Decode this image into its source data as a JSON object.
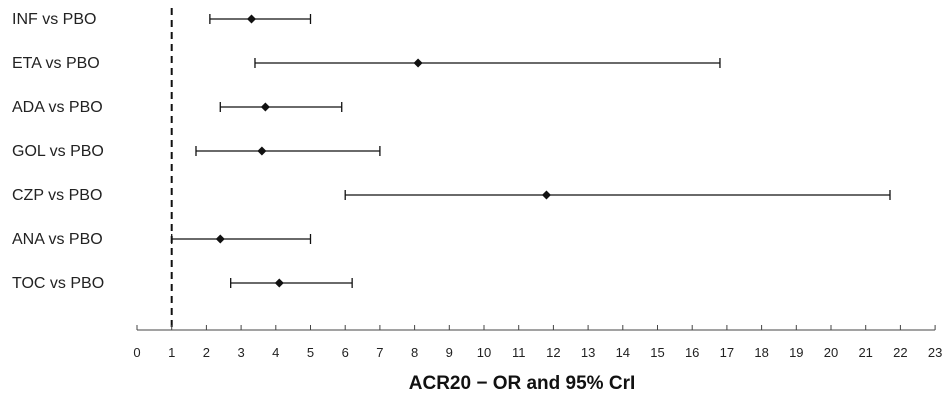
{
  "chart_data": {
    "type": "forest",
    "xlabel": "ACR20 − OR and 95% CrI",
    "xlim": [
      0,
      23
    ],
    "xticks": [
      0,
      1,
      2,
      3,
      4,
      5,
      6,
      7,
      8,
      9,
      10,
      11,
      12,
      13,
      14,
      15,
      16,
      17,
      18,
      19,
      20,
      21,
      22,
      23
    ],
    "reference_line": 1,
    "rows": [
      {
        "label": "INF vs PBO",
        "estimate": 3.3,
        "lower": 2.1,
        "upper": 5.0
      },
      {
        "label": "ETA vs PBO",
        "estimate": 8.1,
        "lower": 3.4,
        "upper": 16.8
      },
      {
        "label": "ADA vs PBO",
        "estimate": 3.7,
        "lower": 2.4,
        "upper": 5.9
      },
      {
        "label": "GOL vs PBO",
        "estimate": 3.6,
        "lower": 1.7,
        "upper": 7.0
      },
      {
        "label": "CZP vs PBO",
        "estimate": 11.8,
        "lower": 6.0,
        "upper": 21.7
      },
      {
        "label": "ANA vs PBO",
        "estimate": 2.4,
        "lower": 1.0,
        "upper": 5.0
      },
      {
        "label": "TOC vs PBO",
        "estimate": 4.1,
        "lower": 2.7,
        "upper": 6.2
      }
    ]
  }
}
